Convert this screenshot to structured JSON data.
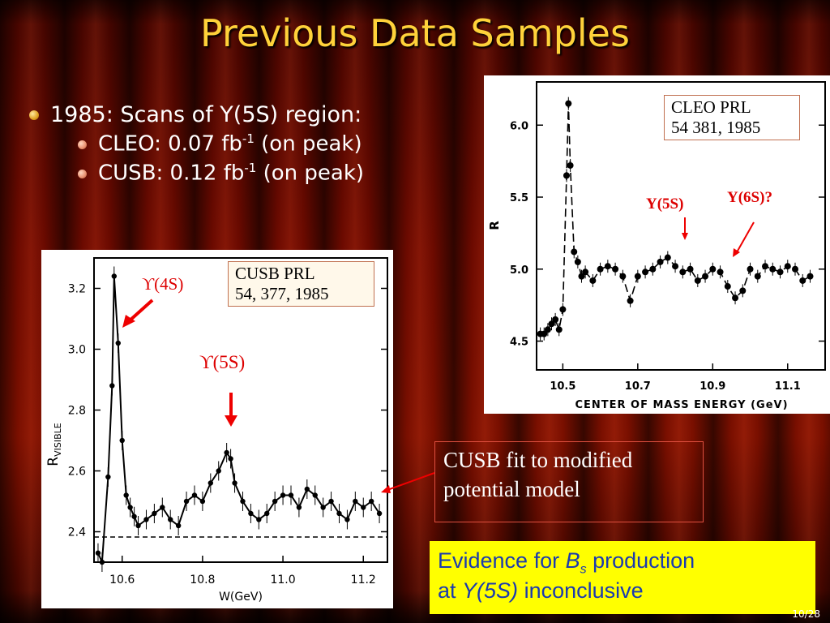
{
  "slide": {
    "title": "Previous Data Samples",
    "page_number": "10/28"
  },
  "bullets": {
    "main": "1985: Scans of Y(5S) region:",
    "cleo_prefix": "CLEO: 0.07 fb",
    "cleo_sup": "-1",
    "cleo_suffix": " (on peak)",
    "cusb_prefix": "CUSB: 0.12 fb",
    "cusb_sup": "-1",
    "cusb_suffix": " (on peak)"
  },
  "cusb_plot": {
    "caption_line1": "CUSB PRL",
    "caption_line2": "54, 377, 1985",
    "label_4s": "ϒ(4S)",
    "label_5s": "ϒ(5S)",
    "ylabel": "R",
    "ylabel_sub": "VISIBLE",
    "xlabel": "W(GeV)",
    "x_ticks": [
      "10.6",
      "10.8",
      "11.0",
      "11.2"
    ],
    "y_ticks": [
      "3.2",
      "3.0",
      "2.8",
      "2.6",
      "2.4"
    ]
  },
  "cleo_plot": {
    "caption_line1": "CLEO PRL",
    "caption_line2": "54 381, 1985",
    "label_5s": "Y(5S)",
    "label_6s": "Y(6S)?",
    "ylabel": "R",
    "xlabel": "CENTER OF MASS ENERGY (GeV)",
    "x_ticks": [
      "10.5",
      "10.7",
      "10.9",
      "11.1"
    ],
    "y_ticks": [
      "6.0",
      "5.5",
      "5.0",
      "4.5"
    ]
  },
  "fit_note": {
    "line1": "CUSB fit to modified",
    "line2": "potential model"
  },
  "conclusion": {
    "part1": "Evidence for ",
    "bs_main": "B",
    "bs_sub": "s",
    "part2": " production",
    "part3": "at ",
    "y5s": "Y(5S)",
    "part4": " inconclusive"
  },
  "chart_data": [
    {
      "type": "scatter",
      "xlabel": "W(GeV)",
      "ylabel": "R_VISIBLE",
      "xlim": [
        10.53,
        11.26
      ],
      "ylim": [
        2.3,
        3.3
      ],
      "x_ticks": [
        10.6,
        10.8,
        11.0,
        11.2
      ],
      "y_ticks": [
        2.4,
        2.6,
        2.8,
        3.0,
        3.2
      ],
      "series": [
        {
          "points": [
            [
              10.54,
              2.33
            ],
            [
              10.55,
              2.3
            ],
            [
              10.565,
              2.58
            ],
            [
              10.575,
              2.88
            ],
            [
              10.58,
              3.24
            ],
            [
              10.59,
              3.02
            ],
            [
              10.6,
              2.7
            ],
            [
              10.61,
              2.52
            ],
            [
              10.62,
              2.48
            ],
            [
              10.63,
              2.45
            ],
            [
              10.64,
              2.42
            ],
            [
              10.66,
              2.44
            ],
            [
              10.68,
              2.46
            ],
            [
              10.7,
              2.48
            ],
            [
              10.72,
              2.44
            ],
            [
              10.74,
              2.42
            ],
            [
              10.76,
              2.5
            ],
            [
              10.78,
              2.52
            ],
            [
              10.8,
              2.5
            ],
            [
              10.82,
              2.56
            ],
            [
              10.84,
              2.6
            ],
            [
              10.86,
              2.66
            ],
            [
              10.87,
              2.64
            ],
            [
              10.88,
              2.56
            ],
            [
              10.9,
              2.5
            ],
            [
              10.92,
              2.46
            ],
            [
              10.94,
              2.44
            ],
            [
              10.96,
              2.46
            ],
            [
              10.98,
              2.5
            ],
            [
              11.0,
              2.52
            ],
            [
              11.02,
              2.52
            ],
            [
              11.04,
              2.48
            ],
            [
              11.06,
              2.54
            ],
            [
              11.08,
              2.52
            ],
            [
              11.1,
              2.48
            ],
            [
              11.12,
              2.5
            ],
            [
              11.14,
              2.46
            ],
            [
              11.16,
              2.44
            ],
            [
              11.18,
              2.5
            ],
            [
              11.2,
              2.48
            ],
            [
              11.22,
              2.5
            ],
            [
              11.24,
              2.46
            ]
          ]
        }
      ]
    },
    {
      "type": "scatter",
      "xlabel": "CENTER OF MASS ENERGY (GeV)",
      "ylabel": "R",
      "xlim": [
        10.43,
        11.2
      ],
      "ylim": [
        4.3,
        6.3
      ],
      "x_ticks": [
        10.5,
        10.7,
        10.9,
        11.1
      ],
      "y_ticks": [
        4.5,
        5.0,
        5.5,
        6.0
      ],
      "series": [
        {
          "points": [
            [
              10.44,
              4.55
            ],
            [
              10.45,
              4.55
            ],
            [
              10.46,
              4.58
            ],
            [
              10.47,
              4.62
            ],
            [
              10.48,
              4.65
            ],
            [
              10.49,
              4.58
            ],
            [
              10.5,
              4.72
            ],
            [
              10.51,
              5.65
            ],
            [
              10.515,
              6.15
            ],
            [
              10.52,
              5.72
            ],
            [
              10.53,
              5.12
            ],
            [
              10.54,
              5.05
            ],
            [
              10.55,
              4.95
            ],
            [
              10.56,
              4.98
            ],
            [
              10.58,
              4.92
            ],
            [
              10.6,
              5.0
            ],
            [
              10.62,
              5.02
            ],
            [
              10.64,
              5.0
            ],
            [
              10.66,
              4.95
            ],
            [
              10.68,
              4.78
            ],
            [
              10.7,
              4.95
            ],
            [
              10.72,
              4.98
            ],
            [
              10.74,
              5.0
            ],
            [
              10.76,
              5.05
            ],
            [
              10.78,
              5.08
            ],
            [
              10.8,
              5.02
            ],
            [
              10.82,
              4.98
            ],
            [
              10.84,
              5.0
            ],
            [
              10.86,
              4.92
            ],
            [
              10.88,
              4.95
            ],
            [
              10.9,
              5.0
            ],
            [
              10.92,
              4.98
            ],
            [
              10.94,
              4.88
            ],
            [
              10.96,
              4.8
            ],
            [
              10.98,
              4.85
            ],
            [
              11.0,
              5.0
            ],
            [
              11.02,
              4.95
            ],
            [
              11.04,
              5.02
            ],
            [
              11.06,
              5.0
            ],
            [
              11.08,
              4.98
            ],
            [
              11.1,
              5.02
            ],
            [
              11.12,
              5.0
            ],
            [
              11.14,
              4.92
            ],
            [
              11.16,
              4.95
            ]
          ]
        }
      ]
    }
  ]
}
